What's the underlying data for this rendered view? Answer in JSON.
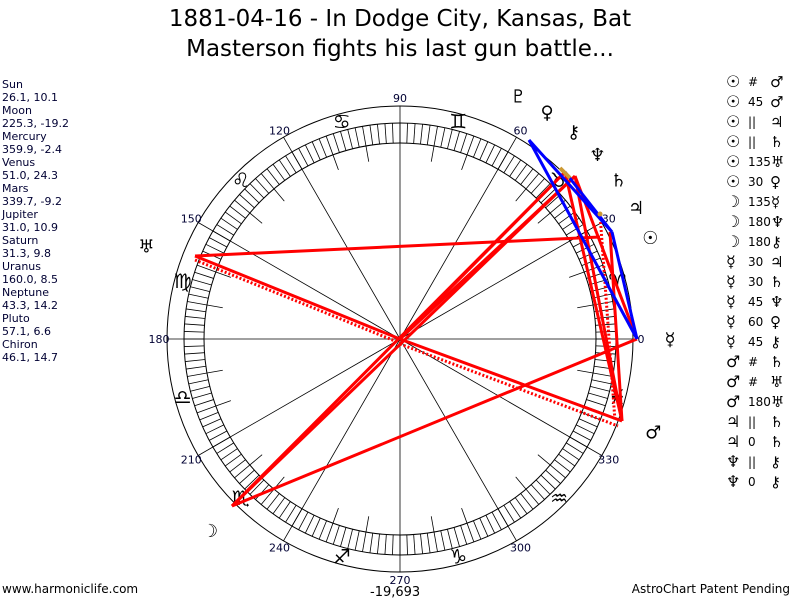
{
  "title": {
    "line1": "1881-04-16 - In Dodge City, Kansas, Bat",
    "line2": "Masterson fights his last gun battle..."
  },
  "positions": [
    {
      "name": "Sun",
      "value": "26.1, 10.1",
      "lon": 26.1,
      "glyph": "☉"
    },
    {
      "name": "Moon",
      "value": "225.3, -19.2",
      "lon": 225.3,
      "glyph": "☽"
    },
    {
      "name": "Mercury",
      "value": "359.9, -2.4",
      "lon": 359.9,
      "glyph": "☿"
    },
    {
      "name": "Venus",
      "value": "51.0, 24.3",
      "lon": 51.0,
      "glyph": "♀"
    },
    {
      "name": "Mars",
      "value": "339.7, -9.2",
      "lon": 339.7,
      "glyph": "♂"
    },
    {
      "name": "Jupiter",
      "value": "31.0, 10.9",
      "lon": 31.0,
      "glyph": "♃"
    },
    {
      "name": "Saturn",
      "value": "31.3, 9.8",
      "lon": 31.3,
      "glyph": "♄"
    },
    {
      "name": "Uranus",
      "value": "160.0, 8.5",
      "lon": 160.0,
      "glyph": "♅"
    },
    {
      "name": "Neptune",
      "value": "43.3, 14.2",
      "lon": 43.3,
      "glyph": "♆"
    },
    {
      "name": "Pluto",
      "value": "57.1, 6.6",
      "lon": 57.1,
      "glyph": "♇"
    },
    {
      "name": "Chiron",
      "value": "46.1, 14.7",
      "lon": 46.1,
      "glyph": "⚷"
    }
  ],
  "aspects": [
    [
      "☉",
      "#",
      "♂"
    ],
    [
      "☉",
      "45",
      "♂"
    ],
    [
      "☉",
      "||",
      "♃"
    ],
    [
      "☉",
      "||",
      "♄"
    ],
    [
      "☉",
      "135",
      "♅"
    ],
    [
      "☉",
      "30",
      "♀"
    ],
    [
      "☽",
      "135",
      "☿"
    ],
    [
      "☽",
      "180",
      "♆"
    ],
    [
      "☽",
      "180",
      "⚷"
    ],
    [
      "☿",
      "30",
      "♃"
    ],
    [
      "☿",
      "30",
      "♄"
    ],
    [
      "☿",
      "45",
      "♆"
    ],
    [
      "☿",
      "60",
      "♀"
    ],
    [
      "☿",
      "45",
      "⚷"
    ],
    [
      "♂",
      "#",
      "♄"
    ],
    [
      "♂",
      "#",
      "♅"
    ],
    [
      "♂",
      "180",
      "♅"
    ],
    [
      "♃",
      "||",
      "♄"
    ],
    [
      "♃",
      "0",
      "♄"
    ],
    [
      "♆",
      "||",
      "⚷"
    ],
    [
      "♆",
      "0",
      "⚷"
    ]
  ],
  "wheel": {
    "degree_labels": [
      "0",
      "30",
      "60",
      "90",
      "120",
      "150",
      "180",
      "210",
      "240",
      "270",
      "300",
      "330"
    ],
    "signs": [
      "♈",
      "♉",
      "♊",
      "♋",
      "♌",
      "♍",
      "♎",
      "♏",
      "♐",
      "♑",
      "♒",
      "♓"
    ],
    "bottom_value": "-19,693"
  },
  "colors": {
    "aspect_red": "#ff0000",
    "aspect_blue": "#0000ff",
    "conjunction_gold": "#cc9933"
  },
  "footer": {
    "left": "www.harmoniclife.com",
    "right": "AstroChart Patent Pending"
  }
}
